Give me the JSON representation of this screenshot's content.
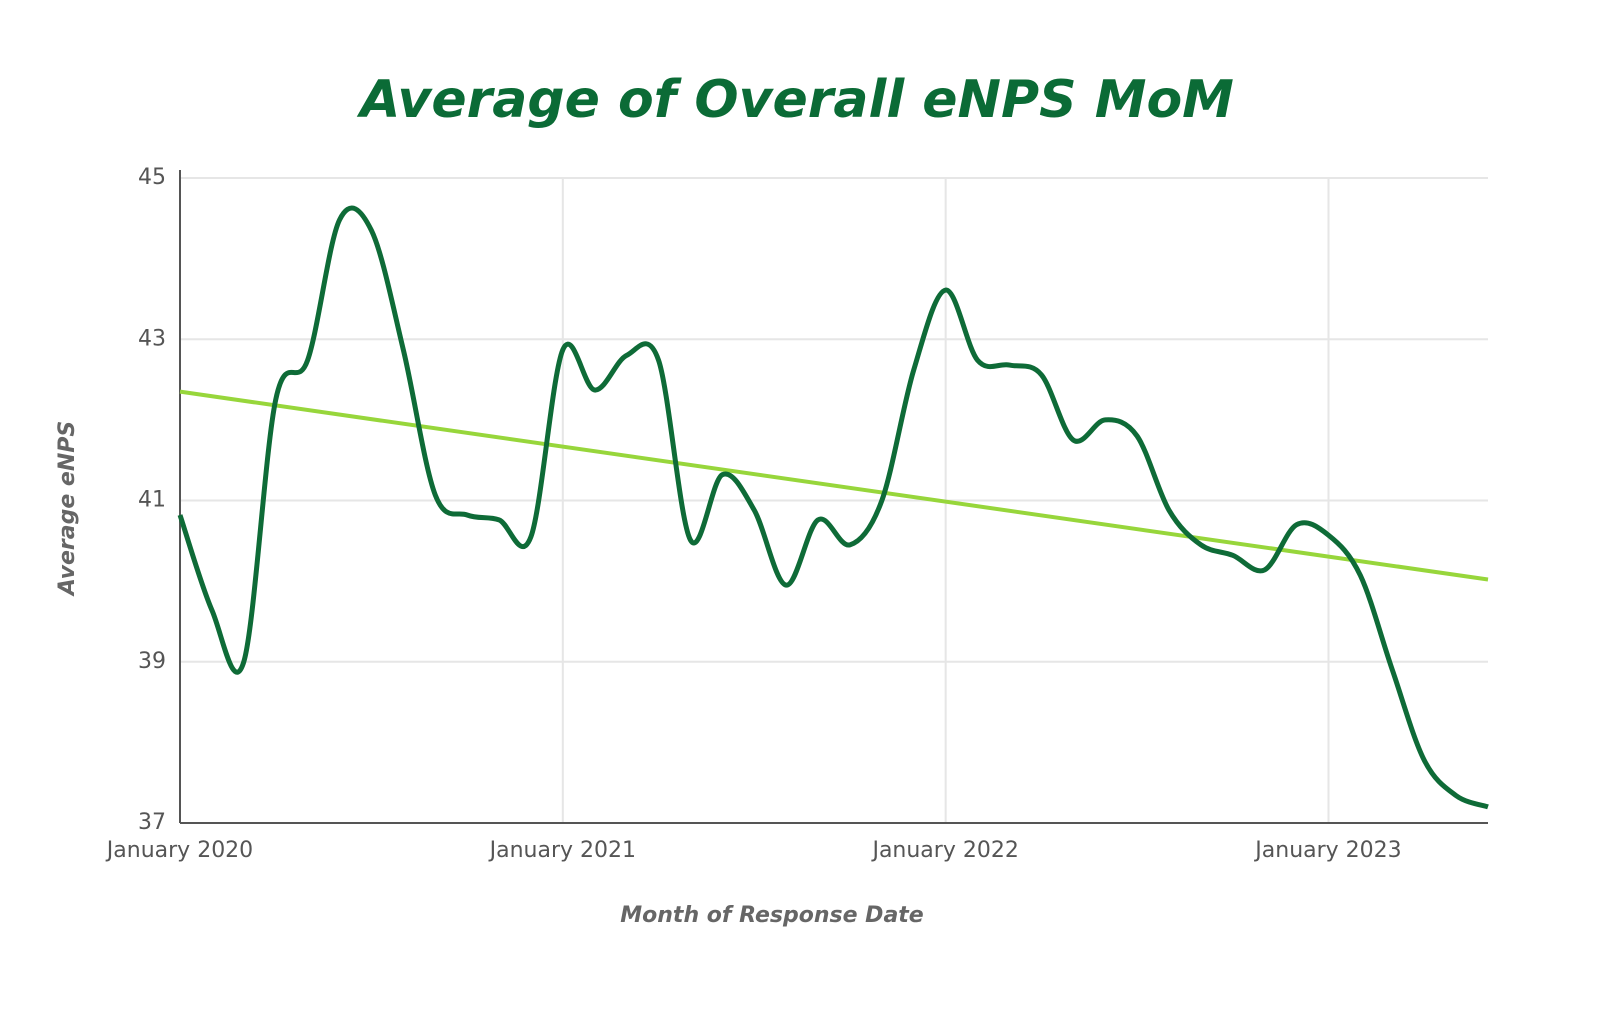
{
  "chart_data": {
    "type": "line",
    "title": "Average of Overall eNPS MoM",
    "x_label": "Month of Response Date",
    "y_label": "Average eNPS",
    "x": [
      "2020-01",
      "2020-02",
      "2020-03",
      "2020-04",
      "2020-05",
      "2020-06",
      "2020-07",
      "2020-08",
      "2020-09",
      "2020-10",
      "2020-11",
      "2020-12",
      "2021-01",
      "2021-02",
      "2021-03",
      "2021-04",
      "2021-05",
      "2021-06",
      "2021-07",
      "2021-08",
      "2021-09",
      "2021-10",
      "2021-11",
      "2021-12",
      "2022-01",
      "2022-02",
      "2022-03",
      "2022-04",
      "2022-05",
      "2022-06",
      "2022-07",
      "2022-08",
      "2022-09",
      "2022-10",
      "2022-11",
      "2022-12",
      "2023-01",
      "2023-02",
      "2023-03",
      "2023-04",
      "2023-05",
      "2023-06"
    ],
    "series": [
      {
        "color": "#0e6b37",
        "values": [
          40.82,
          39.64,
          39.0,
          42.25,
          42.74,
          44.48,
          44.35,
          42.87,
          41.07,
          40.82,
          40.76,
          40.55,
          42.87,
          42.37,
          42.8,
          42.74,
          40.51,
          41.32,
          40.88,
          39.95,
          40.76,
          40.45,
          41.0,
          42.62,
          43.61,
          42.74,
          42.68,
          42.56,
          41.75,
          42.0,
          41.8,
          40.88,
          40.45,
          40.32,
          40.14,
          40.7,
          40.57,
          40.07,
          38.9,
          37.78,
          37.34,
          37.2
        ]
      }
    ],
    "trend": {
      "color": "#97d63b",
      "x": [
        "2020-01",
        "2023-06"
      ],
      "values": [
        42.35,
        40.02
      ]
    },
    "ylim": [
      37,
      45
    ],
    "yticks": [
      37,
      39,
      41,
      43,
      45
    ],
    "xticks": [
      {
        "value": "2020-01",
        "label": "January 2020"
      },
      {
        "value": "2021-01",
        "label": "January 2021"
      },
      {
        "value": "2022-01",
        "label": "January 2022"
      },
      {
        "value": "2023-01",
        "label": "January 2023"
      }
    ],
    "grid": true
  }
}
